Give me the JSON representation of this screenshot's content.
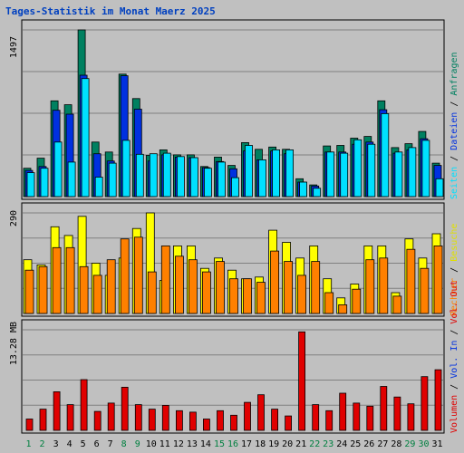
{
  "title": "Tages-Statistik im Monat Maerz 2025",
  "colors": {
    "background": "#c0c0c0",
    "title": "#0040c0",
    "anfragen": "#008060",
    "dateien": "#0030e0",
    "seiten": "#00e0ff",
    "besuche": "#ffff00",
    "rechner": "#ff8000",
    "volumen": "#e00000",
    "weekend_day": "#008040",
    "weekday_day": "#000000"
  },
  "legend": {
    "anfragen": "Anfragen",
    "dateien": "Dateien",
    "seiten": "Seiten",
    "besuche": "Besuche",
    "rechner": "Rechner",
    "vol_in": "Vol. In",
    "vol_out": "Vol. Out",
    "volumen": "Volumen",
    "sep": " / "
  },
  "chart_data": [
    {
      "type": "bar",
      "panel": "top",
      "ymax_label": "1497",
      "ylim": [
        0,
        1497
      ],
      "series": [
        {
          "name": "Anfragen",
          "values": [
            255,
            345,
            860,
            825,
            1497,
            490,
            400,
            1100,
            880,
            370,
            420,
            375,
            375,
            270,
            355,
            280,
            485,
            425,
            445,
            425,
            160,
            105,
            455,
            460,
            525,
            540,
            860,
            440,
            475,
            585,
            300
          ]
        },
        {
          "name": "Dateien",
          "values": [
            235,
            270,
            775,
            740,
            1090,
            385,
            320,
            1085,
            785,
            320,
            375,
            355,
            350,
            260,
            315,
            250,
            410,
            330,
            410,
            385,
            130,
            95,
            400,
            400,
            470,
            490,
            780,
            390,
            420,
            520,
            280
          ]
        },
        {
          "name": "Seiten",
          "values": [
            215,
            255,
            490,
            310,
            1060,
            175,
            300,
            505,
            380,
            385,
            390,
            360,
            350,
            255,
            310,
            170,
            460,
            330,
            420,
            420,
            130,
            75,
            400,
            390,
            510,
            470,
            745,
            400,
            440,
            505,
            160
          ]
        }
      ]
    },
    {
      "type": "bar",
      "panel": "middle",
      "ymax_label": "290",
      "ylim": [
        0,
        290
      ],
      "series": [
        {
          "name": "Besuche",
          "values": [
            155,
            140,
            250,
            225,
            280,
            145,
            110,
            160,
            245,
            290,
            95,
            195,
            195,
            130,
            160,
            125,
            100,
            105,
            240,
            205,
            160,
            195,
            100,
            45,
            85,
            195,
            195,
            60,
            215,
            160,
            230
          ]
        },
        {
          "name": "Rechner",
          "values": [
            125,
            135,
            190,
            190,
            135,
            110,
            155,
            215,
            220,
            120,
            195,
            165,
            155,
            120,
            150,
            100,
            100,
            90,
            180,
            150,
            110,
            150,
            60,
            25,
            70,
            155,
            160,
            50,
            185,
            130,
            195
          ]
        }
      ]
    },
    {
      "type": "bar",
      "panel": "bottom",
      "ymax_label": "13.28 MB",
      "ylim": [
        0,
        13.28
      ],
      "series": [
        {
          "name": "Volumen",
          "values": [
            1.5,
            2.8,
            5.1,
            3.4,
            6.7,
            2.5,
            3.6,
            5.7,
            3.4,
            2.8,
            3.3,
            2.6,
            2.4,
            1.5,
            2.6,
            2.0,
            3.7,
            4.7,
            2.8,
            1.9,
            13.0,
            3.4,
            2.6,
            4.9,
            3.6,
            3.2,
            5.8,
            4.4,
            3.5,
            7.1,
            8.0
          ]
        }
      ]
    }
  ],
  "days": [
    "1",
    "2",
    "3",
    "4",
    "5",
    "6",
    "7",
    "8",
    "9",
    "10",
    "11",
    "12",
    "13",
    "14",
    "15",
    "16",
    "17",
    "18",
    "19",
    "20",
    "21",
    "22",
    "23",
    "24",
    "25",
    "26",
    "27",
    "28",
    "29",
    "30",
    "31"
  ],
  "weekend_days": [
    "1",
    "2",
    "8",
    "9",
    "15",
    "16",
    "22",
    "23",
    "29",
    "30"
  ]
}
